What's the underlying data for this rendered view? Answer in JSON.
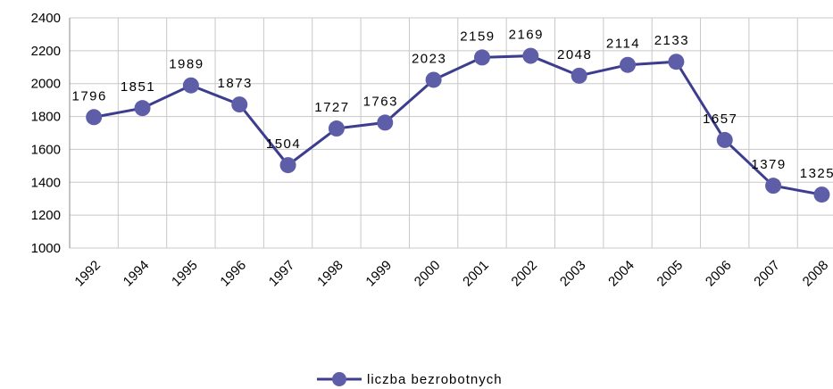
{
  "chart_data": {
    "type": "line",
    "categories": [
      "1992",
      "1994",
      "1995",
      "1996",
      "1997",
      "1998",
      "1999",
      "2000",
      "2001",
      "2002",
      "2003",
      "2004",
      "2005",
      "2006",
      "2007",
      "2008"
    ],
    "series": [
      {
        "name": "liczba bezrobotnych",
        "color": "#3d3d8f",
        "values": [
          1796,
          1851,
          1989,
          1873,
          1504,
          1727,
          1763,
          2023,
          2159,
          2169,
          2048,
          2114,
          2133,
          1657,
          1379,
          1325
        ]
      }
    ],
    "ylim": [
      1000,
      2400
    ],
    "yticks": [
      1000,
      1200,
      1400,
      1600,
      1800,
      2000,
      2200,
      2400
    ],
    "grid": true,
    "legend": "bottom"
  }
}
